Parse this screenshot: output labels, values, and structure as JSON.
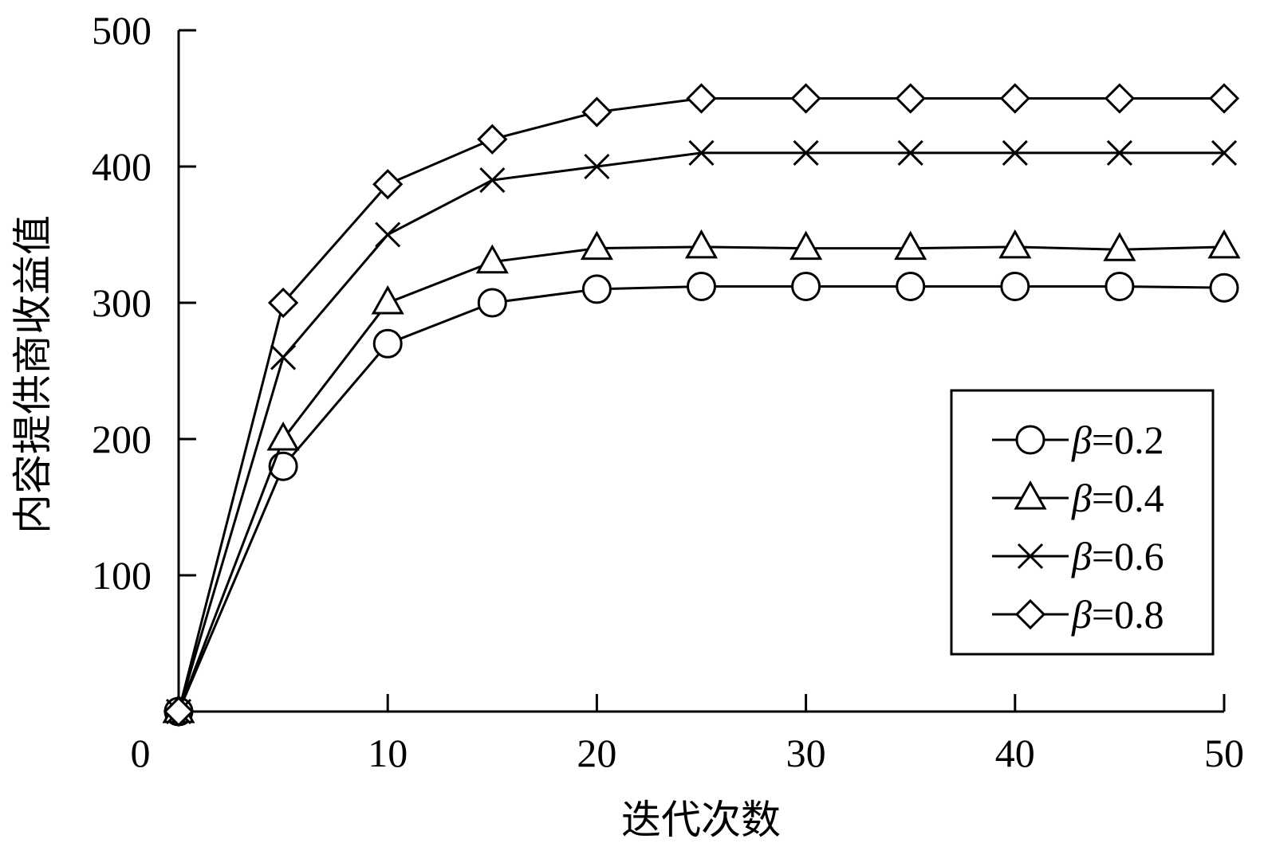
{
  "chart_data": {
    "type": "line",
    "title": "",
    "xlabel": "迭代次数",
    "ylabel": "内容提供商收益值",
    "xlim": [
      0,
      50
    ],
    "ylim": [
      0,
      500
    ],
    "x_ticks": [
      0,
      10,
      20,
      30,
      40,
      50
    ],
    "y_ticks": [
      100,
      200,
      300,
      400,
      500
    ],
    "grid": false,
    "legend_position": "right-middle",
    "x": [
      0,
      5,
      10,
      15,
      20,
      25,
      30,
      35,
      40,
      45,
      50
    ],
    "series": [
      {
        "name": "β=0.2",
        "beta": "β",
        "rest": "=0.2",
        "marker": "circle",
        "values": [
          0,
          180,
          270,
          300,
          310,
          312,
          312,
          312,
          312,
          312,
          311
        ]
      },
      {
        "name": "β=0.4",
        "beta": "β",
        "rest": "=0.4",
        "marker": "triangle",
        "values": [
          0,
          200,
          300,
          330,
          340,
          341,
          340,
          340,
          341,
          339,
          341
        ]
      },
      {
        "name": "β=0.6",
        "beta": "β",
        "rest": "=0.6",
        "marker": "cross",
        "values": [
          0,
          260,
          350,
          390,
          400,
          410,
          410,
          410,
          410,
          410,
          410
        ]
      },
      {
        "name": "β=0.8",
        "beta": "β",
        "rest": "=0.8",
        "marker": "diamond",
        "values": [
          0,
          300,
          387,
          420,
          440,
          450,
          450,
          450,
          450,
          450,
          450
        ]
      }
    ],
    "colors": {
      "line": "#000000",
      "background": "#ffffff"
    }
  }
}
